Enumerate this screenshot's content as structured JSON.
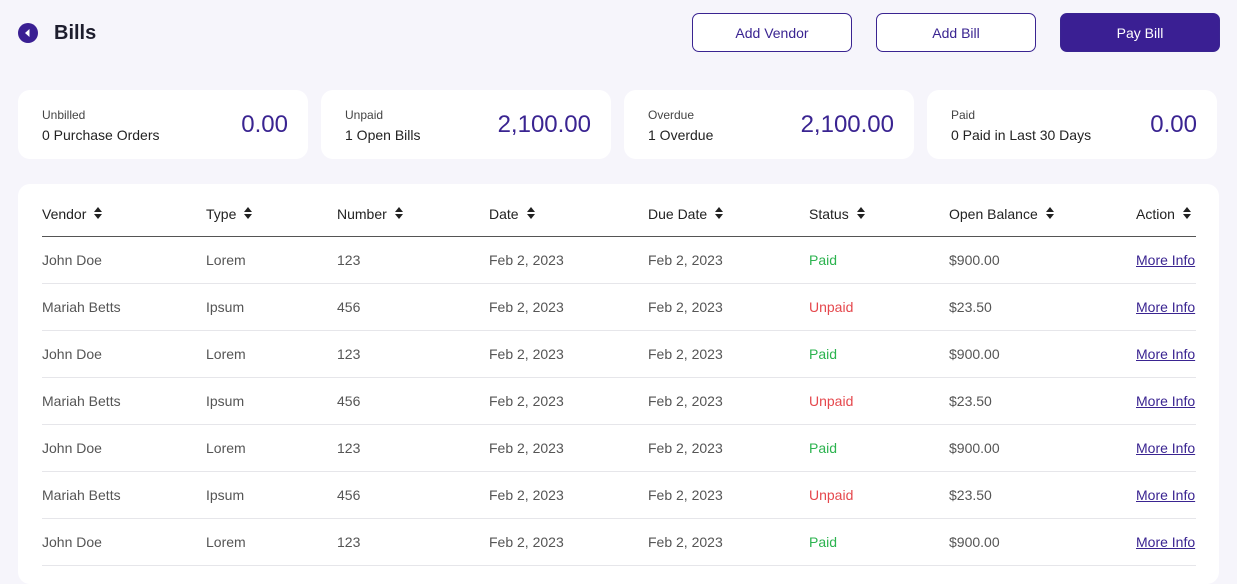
{
  "header": {
    "title": "Bills",
    "buttons": [
      "Add Vendor",
      "Add Bill",
      "Pay Bill"
    ]
  },
  "summary": [
    {
      "label": "Unbilled",
      "sublabel": "0 Purchase Orders",
      "amount": "0.00"
    },
    {
      "label": "Unpaid",
      "sublabel": "1 Open Bills",
      "amount": "2,100.00"
    },
    {
      "label": "Overdue",
      "sublabel": "1 Overdue",
      "amount": "2,100.00"
    },
    {
      "label": "Paid",
      "sublabel": "0 Paid in Last 30 Days",
      "amount": "0.00"
    }
  ],
  "table": {
    "columns": [
      "Vendor",
      "Type",
      "Number",
      "Date",
      "Due Date",
      "Status",
      "Open Balance",
      "Action"
    ],
    "status_colors": {
      "Paid": "#2cb34f",
      "Unpaid": "#e5484d"
    },
    "rows": [
      [
        "John Doe",
        "Lorem",
        "123",
        "Feb 2, 2023",
        "Feb 2, 2023",
        "Paid",
        "$900.00",
        "More Info"
      ],
      [
        "Mariah Betts",
        "Ipsum",
        "456",
        "Feb 2, 2023",
        "Feb 2, 2023",
        "Unpaid",
        "$23.50",
        "More Info"
      ],
      [
        "John Doe",
        "Lorem",
        "123",
        "Feb 2, 2023",
        "Feb 2, 2023",
        "Paid",
        "$900.00",
        "More Info"
      ],
      [
        "Mariah Betts",
        "Ipsum",
        "456",
        "Feb 2, 2023",
        "Feb 2, 2023",
        "Unpaid",
        "$23.50",
        "More Info"
      ],
      [
        "John Doe",
        "Lorem",
        "123",
        "Feb 2, 2023",
        "Feb 2, 2023",
        "Paid",
        "$900.00",
        "More Info"
      ],
      [
        "Mariah Betts",
        "Ipsum",
        "456",
        "Feb 2, 2023",
        "Feb 2, 2023",
        "Unpaid",
        "$23.50",
        "More Info"
      ],
      [
        "John Doe",
        "Lorem",
        "123",
        "Feb 2, 2023",
        "Feb 2, 2023",
        "Paid",
        "$900.00",
        "More Info"
      ]
    ]
  }
}
